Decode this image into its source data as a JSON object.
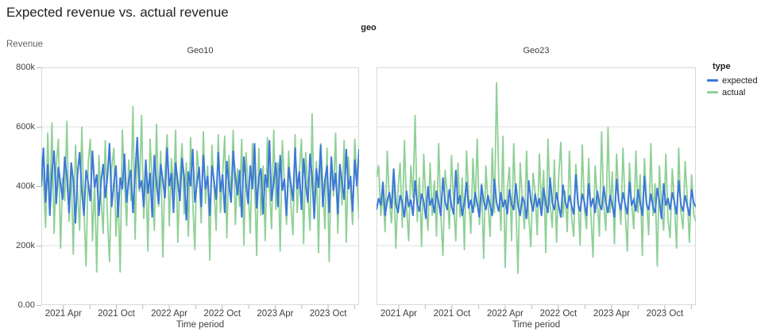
{
  "chart_data": {
    "type": "line",
    "title": "Expected revenue vs. actual revenue",
    "facet_field": "geo",
    "x": {
      "label": "Time period",
      "domain_months_after_2021_01": [
        0.5,
        36.5
      ],
      "point_spacing": "weekly",
      "tick_months": [
        3,
        6,
        9,
        12,
        15,
        18,
        21,
        24,
        27,
        30,
        33,
        36
      ],
      "labels": [
        {
          "month": 3,
          "text": "2021 Apr"
        },
        {
          "month": 9,
          "text": "2021 Oct"
        },
        {
          "month": 15,
          "text": "2022 Apr"
        },
        {
          "month": 21,
          "text": "2022 Oct"
        },
        {
          "month": 27,
          "text": "2023 Apr"
        },
        {
          "month": 33,
          "text": "2023 Oct"
        }
      ]
    },
    "y": {
      "label": "Revenue",
      "lim": [
        0,
        800000
      ],
      "ticks": [
        {
          "value": 0,
          "text": "0.00"
        },
        {
          "value": 200000,
          "text": "200k"
        },
        {
          "value": 400000,
          "text": "400k"
        },
        {
          "value": 600000,
          "text": "600k"
        },
        {
          "value": 800000,
          "text": "800k"
        }
      ],
      "grid": true
    },
    "legend": {
      "title": "type",
      "position": "top-right",
      "items": [
        {
          "label": "expected",
          "color": "#3C78D8"
        },
        {
          "label": "actual",
          "color": "#8FD096"
        }
      ]
    },
    "facets": [
      {
        "name": "Geo10",
        "series": [
          {
            "name": "expected",
            "color": "#3C78D8",
            "values_k": [
              400,
              530,
              345,
              475,
              300,
              450,
              520,
              340,
              465,
              410,
              355,
              500,
              430,
              310,
              480,
              420,
              275,
              440,
              515,
              385,
              300,
              455,
              410,
              350,
              520,
              395,
              440,
              300,
              415,
              475,
              360,
              430,
              545,
              330,
              410,
              470,
              295,
              430,
              390,
              510,
              345,
              420,
              455,
              310,
              440,
              565,
              390,
              420,
              330,
              490,
              375,
              445,
              295,
              505,
              410,
              340,
              475,
              420,
              360,
              530,
              400,
              445,
              310,
              480,
              415,
              350,
              495,
              430,
              285,
              450,
              400,
              525,
              345,
              410,
              465,
              330,
              505,
              390,
              435,
              300,
              470,
              420,
              355,
              515,
              380,
              440,
              310,
              485,
              405,
              345,
              520,
              430,
              370,
              455,
              295,
              500,
              410,
              340,
              470,
              390,
              545,
              325,
              430,
              460,
              305,
              440,
              395,
              555,
              350,
              415,
              480,
              330,
              505,
              385,
              425,
              300,
              465,
              410,
              350,
              530,
              390,
              450,
              320,
              495,
              405,
              345,
              510,
              430,
              290,
              460,
              395,
              540,
              330,
              420,
              470,
              310,
              500,
              385,
              445,
              305,
              475,
              415,
              355,
              525,
              390,
              435,
              315,
              490,
              400,
              525
            ]
          },
          {
            "name": "actual",
            "color": "#8FD096",
            "values_k": [
              500,
              420,
              260,
              580,
              330,
              615,
              240,
              470,
              560,
              190,
              430,
              350,
              620,
              280,
              455,
              170,
              540,
              385,
              250,
              600,
              320,
              130,
              480,
              560,
              215,
              415,
              110,
              505,
              360,
              240,
              555,
              300,
              145,
              460,
              530,
              230,
              380,
              110,
              590,
              415,
              265,
              490,
              350,
              670,
              220,
              545,
              380,
              640,
              290,
              470,
              180,
              560,
              405,
              250,
              610,
              330,
              520,
              160,
              450,
              575,
              265,
              495,
              370,
              590,
              210,
              430,
              545,
              305,
              480,
              230,
              565,
              350,
              185,
              520,
              440,
              275,
              585,
              340,
              470,
              150,
              540,
              395,
              250,
              575,
              310,
              435,
              570,
              225,
              505,
              345,
              590,
              270,
              460,
              330,
              560,
              200,
              515,
              390,
              240,
              545,
              420,
              165,
              530,
              300,
              470,
              215,
              565,
              395,
              255,
              590,
              320,
              480,
              180,
              555,
              410,
              270,
              520,
              345,
              235,
              575,
              310,
              450,
              560,
              205,
              515,
              380,
              250,
              645,
              300,
              485,
              175,
              545,
              405,
              255,
              530,
              145,
              490,
              365,
              580,
              240,
              460,
              335,
              555,
              210,
              500,
              385,
              270,
              560,
              425,
              290
            ]
          }
        ]
      },
      {
        "name": "Geo23",
        "series": [
          {
            "name": "expected",
            "color": "#3C78D8",
            "values_k": [
              320,
              360,
              335,
              415,
              300,
              350,
              380,
              325,
              460,
              340,
              310,
              370,
              345,
              295,
              385,
              330,
              355,
              300,
              420,
              340,
              315,
              375,
              350,
              290,
              400,
              335,
              360,
              310,
              385,
              345,
              300,
              430,
              350,
              320,
              390,
              335,
              305,
              455,
              340,
              370,
              300,
              345,
              415,
              325,
              355,
              310,
              380,
              340,
              295,
              405,
              350,
              320,
              370,
              335,
              300,
              425,
              345,
              315,
              380,
              330,
              355,
              305,
              390,
              340,
              320,
              410,
              335,
              300,
              365,
              345,
              290,
              420,
              350,
              315,
              375,
              330,
              360,
              300,
              395,
              340,
              310,
              430,
              345,
              320,
              380,
              335,
              295,
              405,
              350,
              325,
              370,
              335,
              305,
              440,
              340,
              315,
              375,
              345,
              300,
              410,
              330,
              360,
              310,
              385,
              340,
              320,
              400,
              345,
              310,
              370,
              335,
              295,
              425,
              350,
              320,
              380,
              340,
              305,
              415,
              335,
              355,
              315,
              390,
              345,
              300,
              435,
              340,
              320,
              375,
              330,
              310,
              395,
              350,
              290,
              410,
              335,
              360,
              320,
              380,
              345,
              305,
              420,
              340,
              315,
              370,
              335,
              300,
              390,
              345,
              330
            ]
          },
          {
            "name": "actual",
            "color": "#8FD096",
            "values_k": [
              430,
              470,
              300,
              380,
              245,
              520,
              350,
              275,
              445,
              190,
              390,
              480,
              260,
              555,
              330,
              215,
              470,
              360,
              640,
              280,
              430,
              195,
              510,
              345,
              250,
              480,
              300,
              420,
              230,
              545,
              310,
              165,
              455,
              375,
              255,
              505,
              340,
              215,
              480,
              295,
              430,
              185,
              520,
              365,
              240,
              495,
              330,
              560,
              270,
              410,
              155,
              470,
              345,
              230,
              530,
              310,
              750,
              430,
              250,
              570,
              125,
              390,
              465,
              215,
              545,
              330,
              105,
              480,
              360,
              255,
              520,
              300,
              195,
              445,
              380,
              235,
              510,
              325,
              455,
              175,
              560,
              340,
              260,
              490,
              210,
              430,
              550,
              295,
              385,
              245,
              520,
              300,
              230,
              475,
              360,
              200,
              540,
              325,
              255,
              495,
              310,
              160,
              470,
              355,
              230,
              585,
              340,
              250,
              600,
              310,
              450,
              205,
              510,
              365,
              270,
              530,
              320,
              180,
              480,
              345,
              255,
              520,
              310,
              440,
              165,
              495,
              350,
              235,
              545,
              300,
              410,
              130,
              470,
              330,
              250,
              510,
              290,
              225,
              460,
              345,
              190,
              530,
              315,
              255,
              485,
              360,
              210,
              440,
              305,
              280
            ]
          }
        ]
      }
    ],
    "style_colors": {
      "plot_border": "#d5d8db",
      "gridline": "#dddfe1",
      "tick_mark": "#b7bbbf",
      "tick_text": "#3c4043",
      "title_text": "#202124"
    }
  }
}
